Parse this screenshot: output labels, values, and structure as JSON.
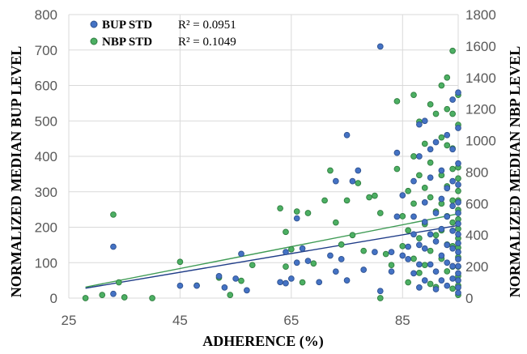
{
  "chart_data": {
    "type": "scatter",
    "xlabel": "ADHERENCE (%)",
    "ylabel": "NORMALIZED MEDIAN BUP LEVEL",
    "y2label": "NORMALIZED MEDIAN NBP LEVEL",
    "xlim": [
      25,
      95
    ],
    "ylim": [
      0,
      800
    ],
    "y2lim": [
      0,
      1800
    ],
    "x_ticks": [
      25,
      45,
      65,
      85
    ],
    "y_ticks": [
      0,
      100,
      200,
      300,
      400,
      500,
      600,
      700,
      800
    ],
    "y2_ticks": [
      0,
      200,
      400,
      600,
      800,
      1000,
      1200,
      1400,
      1600,
      1800
    ],
    "grid": true,
    "legend_position": "top-left",
    "series": [
      {
        "name": "BUP STD",
        "axis": "left",
        "color": "#4472c4",
        "r2_label": "R² = 0.0951",
        "trendline": [
          [
            28,
            28
          ],
          [
            95,
            205
          ]
        ],
        "points": [
          [
            33,
            145
          ],
          [
            33,
            12
          ],
          [
            45,
            35
          ],
          [
            48,
            35
          ],
          [
            52,
            62
          ],
          [
            53,
            30
          ],
          [
            55,
            55
          ],
          [
            56,
            125
          ],
          [
            57,
            22
          ],
          [
            63,
            45
          ],
          [
            64,
            42
          ],
          [
            64,
            130
          ],
          [
            65,
            55
          ],
          [
            66,
            100
          ],
          [
            66,
            225
          ],
          [
            67,
            140
          ],
          [
            68,
            105
          ],
          [
            70,
            45
          ],
          [
            72,
            120
          ],
          [
            73,
            75
          ],
          [
            73,
            330
          ],
          [
            74,
            110
          ],
          [
            75,
            50
          ],
          [
            75,
            460
          ],
          [
            76,
            330
          ],
          [
            77,
            360
          ],
          [
            78,
            80
          ],
          [
            80,
            130
          ],
          [
            81,
            20
          ],
          [
            81,
            710
          ],
          [
            83,
            130
          ],
          [
            83,
            75
          ],
          [
            84,
            410
          ],
          [
            84,
            230
          ],
          [
            85,
            290
          ],
          [
            85,
            120
          ],
          [
            86,
            145
          ],
          [
            86,
            110
          ],
          [
            87,
            330
          ],
          [
            87,
            230
          ],
          [
            87,
            180
          ],
          [
            87,
            70
          ],
          [
            88,
            490
          ],
          [
            88,
            400
          ],
          [
            88,
            150
          ],
          [
            88,
            95
          ],
          [
            88,
            30
          ],
          [
            89,
            500
          ],
          [
            89,
            270
          ],
          [
            89,
            215
          ],
          [
            89,
            140
          ],
          [
            89,
            50
          ],
          [
            90,
            420
          ],
          [
            90,
            340
          ],
          [
            90,
            180
          ],
          [
            90,
            95
          ],
          [
            91,
            440
          ],
          [
            91,
            240
          ],
          [
            91,
            160
          ],
          [
            91,
            75
          ],
          [
            91,
            25
          ],
          [
            92,
            360
          ],
          [
            92,
            280
          ],
          [
            92,
            195
          ],
          [
            92,
            120
          ],
          [
            92,
            50
          ],
          [
            93,
            460
          ],
          [
            93,
            310
          ],
          [
            93,
            230
          ],
          [
            93,
            150
          ],
          [
            93,
            100
          ],
          [
            93,
            35
          ],
          [
            94,
            560
          ],
          [
            94,
            420
          ],
          [
            94,
            330
          ],
          [
            94,
            260
          ],
          [
            94,
            190
          ],
          [
            94,
            140
          ],
          [
            94,
            90
          ],
          [
            94,
            55
          ],
          [
            95,
            580
          ],
          [
            95,
            480
          ],
          [
            95,
            380
          ],
          [
            95,
            320
          ],
          [
            95,
            270
          ],
          [
            95,
            240
          ],
          [
            95,
            210
          ],
          [
            95,
            180
          ],
          [
            95,
            155
          ],
          [
            95,
            130
          ],
          [
            95,
            110
          ],
          [
            95,
            90
          ],
          [
            95,
            70
          ],
          [
            95,
            50
          ],
          [
            95,
            30
          ],
          [
            95,
            15
          ]
        ]
      },
      {
        "name": "NBP STD",
        "axis": "right",
        "color": "#4caf63",
        "r2_label": "R² = 0.1049",
        "trendline": [
          [
            28,
            70
          ],
          [
            95,
            535
          ]
        ],
        "points": [
          [
            28,
            0
          ],
          [
            31,
            20
          ],
          [
            33,
            530
          ],
          [
            34,
            100
          ],
          [
            35,
            5
          ],
          [
            40,
            0
          ],
          [
            45,
            230
          ],
          [
            48,
            80
          ],
          [
            52,
            130
          ],
          [
            54,
            20
          ],
          [
            56,
            110
          ],
          [
            58,
            210
          ],
          [
            63,
            570
          ],
          [
            64,
            420
          ],
          [
            64,
            200
          ],
          [
            65,
            310
          ],
          [
            66,
            550
          ],
          [
            67,
            100
          ],
          [
            68,
            540
          ],
          [
            69,
            220
          ],
          [
            71,
            620
          ],
          [
            72,
            810
          ],
          [
            73,
            480
          ],
          [
            74,
            340
          ],
          [
            75,
            620
          ],
          [
            76,
            400
          ],
          [
            77,
            730
          ],
          [
            78,
            300
          ],
          [
            79,
            640
          ],
          [
            80,
            650
          ],
          [
            81,
            540
          ],
          [
            81,
            0
          ],
          [
            82,
            280
          ],
          [
            83,
            210
          ],
          [
            84,
            1250
          ],
          [
            84,
            820
          ],
          [
            85,
            520
          ],
          [
            85,
            330
          ],
          [
            86,
            680
          ],
          [
            86,
            430
          ],
          [
            86,
            100
          ],
          [
            87,
            1290
          ],
          [
            87,
            900
          ],
          [
            87,
            600
          ],
          [
            87,
            250
          ],
          [
            88,
            1120
          ],
          [
            88,
            780
          ],
          [
            88,
            380
          ],
          [
            88,
            160
          ],
          [
            89,
            980
          ],
          [
            89,
            700
          ],
          [
            89,
            470
          ],
          [
            89,
            210
          ],
          [
            90,
            1230
          ],
          [
            90,
            860
          ],
          [
            90,
            640
          ],
          [
            90,
            300
          ],
          [
            90,
            90
          ],
          [
            91,
            1170
          ],
          [
            91,
            550
          ],
          [
            91,
            400
          ],
          [
            91,
            70
          ],
          [
            92,
            1350
          ],
          [
            92,
            1020
          ],
          [
            92,
            780
          ],
          [
            92,
            600
          ],
          [
            92,
            430
          ],
          [
            92,
            250
          ],
          [
            93,
            1400
          ],
          [
            93,
            1200
          ],
          [
            93,
            970
          ],
          [
            93,
            710
          ],
          [
            93,
            520
          ],
          [
            93,
            340
          ],
          [
            93,
            170
          ],
          [
            94,
            1570
          ],
          [
            94,
            1170
          ],
          [
            94,
            950
          ],
          [
            94,
            820
          ],
          [
            94,
            620
          ],
          [
            94,
            480
          ],
          [
            94,
            330
          ],
          [
            94,
            200
          ],
          [
            94,
            60
          ],
          [
            95,
            1290
          ],
          [
            95,
            1100
          ],
          [
            95,
            830
          ],
          [
            95,
            760
          ],
          [
            95,
            680
          ],
          [
            95,
            620
          ],
          [
            95,
            560
          ],
          [
            95,
            500
          ],
          [
            95,
            440
          ],
          [
            95,
            380
          ],
          [
            95,
            320
          ],
          [
            95,
            260
          ],
          [
            95,
            200
          ],
          [
            95,
            140
          ],
          [
            95,
            80
          ],
          [
            95,
            20
          ]
        ]
      }
    ]
  }
}
